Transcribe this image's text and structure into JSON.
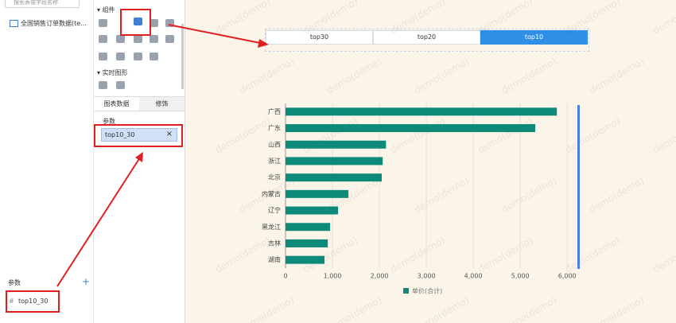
{
  "left_panel": {
    "search_placeholder": "搜索表或字段名称",
    "dataset": "全国销售订单数据(te...",
    "params_title": "参数",
    "param": "top10_30"
  },
  "middle_panel": {
    "components_title": "组件",
    "realtime_title": "实时图形",
    "tabs": [
      "图表数据",
      "修饰"
    ],
    "params_label": "参数",
    "param_chip": "top10_30"
  },
  "canvas": {
    "buttons": [
      "top30",
      "top20",
      "top10"
    ],
    "selected": 2,
    "watermark": "demo(demo)"
  },
  "chart_data": {
    "type": "bar",
    "orientation": "horizontal",
    "categories": [
      "广西",
      "广东",
      "山西",
      "浙江",
      "北京",
      "内蒙古",
      "辽宁",
      "黑龙江",
      "吉林",
      "湖南"
    ],
    "series": [
      {
        "name": "单价(合计)",
        "color": "#0e8a7a",
        "values": [
          5780,
          5320,
          2140,
          2070,
          2050,
          1340,
          1120,
          950,
          900,
          830
        ]
      }
    ],
    "xlim": [
      0,
      6200
    ],
    "xticks": [
      0,
      {
        "value": 1000,
        "label": "1,000"
      },
      {
        "value": 2000,
        "label": "2,000"
      },
      {
        "value": 3000,
        "label": "3,000"
      },
      {
        "value": 4000,
        "label": "4,000"
      },
      {
        "value": 5000,
        "label": "5,000"
      },
      {
        "value": 6000,
        "label": "6,000"
      }
    ],
    "grid": true
  }
}
